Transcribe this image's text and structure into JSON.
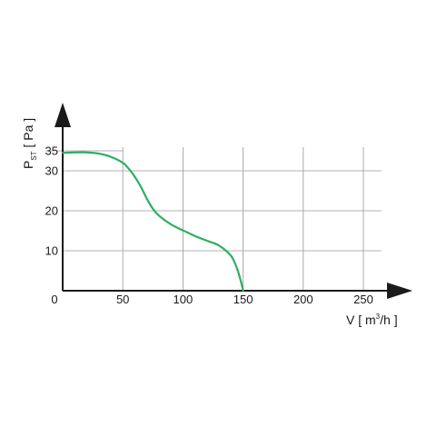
{
  "chart_data": {
    "type": "line",
    "title": "",
    "ylabel": {
      "main": "P",
      "sub": "ST",
      "rest": " [ Pa ]"
    },
    "xlabel": {
      "main": "V [ m",
      "sup": "3",
      "rest": "/h ]"
    },
    "xlim": [
      0,
      270
    ],
    "ylim": [
      0,
      40
    ],
    "x_ticks": [
      0,
      50,
      100,
      150,
      200,
      250
    ],
    "y_ticks": [
      10,
      20,
      30,
      35
    ],
    "grid": true,
    "colors": {
      "line": "#2fae62",
      "grid": "#9a9a9a",
      "axis": "#1a1a1a"
    },
    "series": [
      {
        "x": [
          0,
          10,
          20,
          30,
          40,
          50,
          55,
          60,
          65,
          70,
          75,
          80,
          90,
          100,
          110,
          120,
          130,
          140,
          145,
          148,
          150
        ],
        "y": [
          34.5,
          34.6,
          34.6,
          34.3,
          33.5,
          32.0,
          30.5,
          28.5,
          26.0,
          23.0,
          20.5,
          18.8,
          16.6,
          15.1,
          13.7,
          12.5,
          11.3,
          8.7,
          5.5,
          2.5,
          0
        ]
      }
    ]
  }
}
